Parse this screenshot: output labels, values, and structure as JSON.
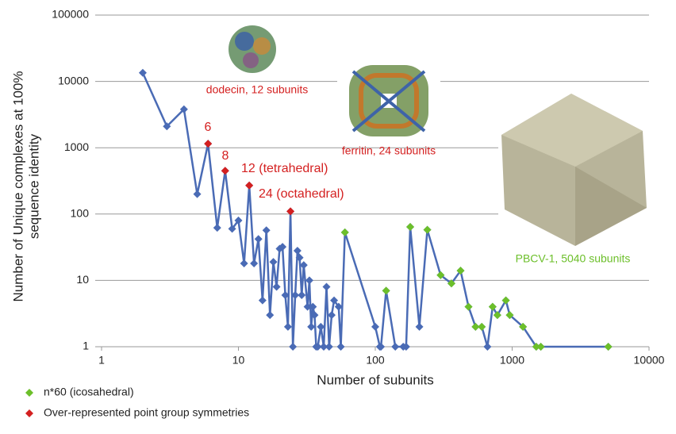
{
  "chart_data": {
    "type": "line",
    "xlabel": "Number of subunits",
    "ylabel": [
      "Number of Unique complexes at 100%",
      "sequence identity"
    ],
    "xscale": "log",
    "yscale": "log",
    "xlim": [
      1,
      10000
    ],
    "xticks": [
      1,
      10,
      100,
      1000,
      10000
    ],
    "ylim": [
      1,
      100000
    ],
    "yticks": [
      1,
      10,
      100,
      1000,
      10000,
      100000
    ],
    "grid": true,
    "legend": "bottom-left",
    "series": [
      {
        "color": "#4a6bb5",
        "line": true,
        "x": [
          2,
          3,
          4,
          5,
          6,
          7,
          8,
          9,
          10,
          11,
          12,
          13,
          14,
          15,
          16,
          17,
          18,
          19,
          20,
          21,
          22,
          23,
          24,
          25,
          26,
          27,
          28,
          29,
          30,
          32,
          33,
          34,
          35,
          36,
          37,
          38,
          40,
          42,
          44,
          46,
          48,
          50,
          54,
          56,
          60,
          100,
          108,
          110,
          120,
          140,
          160,
          168,
          180,
          210,
          240,
          300,
          360,
          420,
          480,
          540,
          600,
          660,
          720,
          780,
          900,
          960,
          1200,
          1500,
          1620,
          5040
        ],
        "values": [
          13500,
          2100,
          3800,
          200,
          1150,
          62,
          450,
          60,
          80,
          18,
          270,
          18,
          42,
          5,
          57,
          3,
          19,
          8,
          30,
          32,
          6,
          2,
          110,
          1,
          6,
          28,
          22,
          6,
          17,
          4,
          10,
          2,
          4,
          3,
          1,
          1,
          2,
          1,
          8,
          1,
          3,
          5,
          4,
          1,
          53,
          2,
          1,
          1,
          7,
          1,
          1,
          1,
          64,
          2,
          58,
          12,
          9,
          14,
          4,
          2,
          2,
          1,
          4,
          3,
          5,
          3,
          2,
          1,
          1,
          1
        ]
      },
      {
        "name": "n*60 (icosahedral)",
        "color": "#6cbf2a",
        "line": false,
        "x": [
          60,
          120,
          180,
          240,
          300,
          360,
          420,
          480,
          540,
          600,
          720,
          780,
          900,
          960,
          1200,
          1500,
          1620,
          5040
        ],
        "values": [
          53,
          7,
          64,
          58,
          12,
          9,
          14,
          4,
          2,
          2,
          4,
          3,
          5,
          3,
          2,
          1,
          1,
          1
        ]
      },
      {
        "name": "Over-represented point group symmetries",
        "color": "#d42020",
        "line": false,
        "x": [
          6,
          8,
          12,
          24
        ],
        "values": [
          1150,
          450,
          270,
          110
        ]
      }
    ],
    "annotations": [
      {
        "text": "6",
        "color": "#d42020"
      },
      {
        "text": "8",
        "color": "#d42020"
      },
      {
        "text": "12 (tetrahedral)",
        "color": "#d42020"
      },
      {
        "text": "24 (octahedral)",
        "color": "#d42020"
      },
      {
        "text": "dodecin, 12 subunits",
        "color": "#d42020"
      },
      {
        "text": "ferritin, 24 subunits",
        "color": "#d42020"
      },
      {
        "text": "PBCV-1, 5040 subunits",
        "color": "#6cbf2a"
      }
    ]
  }
}
